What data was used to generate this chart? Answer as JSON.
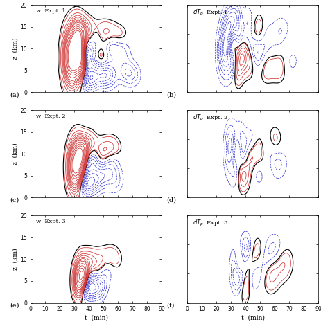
{
  "panels": [
    {
      "label": "w  Expt. 1",
      "panel_id": "a",
      "col": 0,
      "row": 0,
      "ylim": [
        0,
        20
      ],
      "yticks": [
        0,
        5,
        10,
        15,
        20
      ]
    },
    {
      "label": "dT_p  Expt. 1",
      "panel_id": "b",
      "col": 1,
      "row": 0,
      "ylim": [
        0,
        15
      ],
      "yticks": [
        0,
        5,
        10,
        15
      ]
    },
    {
      "label": "w  Expt. 2",
      "panel_id": "c",
      "col": 0,
      "row": 1,
      "ylim": [
        0,
        20
      ],
      "yticks": [
        0,
        5,
        10,
        15,
        20
      ]
    },
    {
      "label": "dT_p  Expt. 2",
      "panel_id": "d",
      "col": 1,
      "row": 1,
      "ylim": [
        0,
        15
      ],
      "yticks": [
        0,
        5,
        10,
        15
      ]
    },
    {
      "label": "w  Expt. 3",
      "panel_id": "e",
      "col": 0,
      "row": 2,
      "ylim": [
        0,
        20
      ],
      "yticks": [
        0,
        5,
        10,
        15,
        20
      ]
    },
    {
      "label": "dT_p  Expt. 3",
      "panel_id": "f",
      "col": 1,
      "row": 2,
      "ylim": [
        0,
        15
      ],
      "yticks": [
        0,
        5,
        10,
        15
      ]
    }
  ],
  "xlim": [
    0,
    90
  ],
  "xticks": [
    0,
    10,
    20,
    30,
    40,
    50,
    60,
    70,
    80,
    90
  ],
  "xlabel": "t  (min)",
  "ylabel": "z  (km)",
  "pos_color": "#cc2222",
  "neg_color": "#2222cc",
  "black_color": "#000000",
  "background": "#ffffff",
  "figsize": [
    4.64,
    4.68
  ],
  "dpi": 100
}
